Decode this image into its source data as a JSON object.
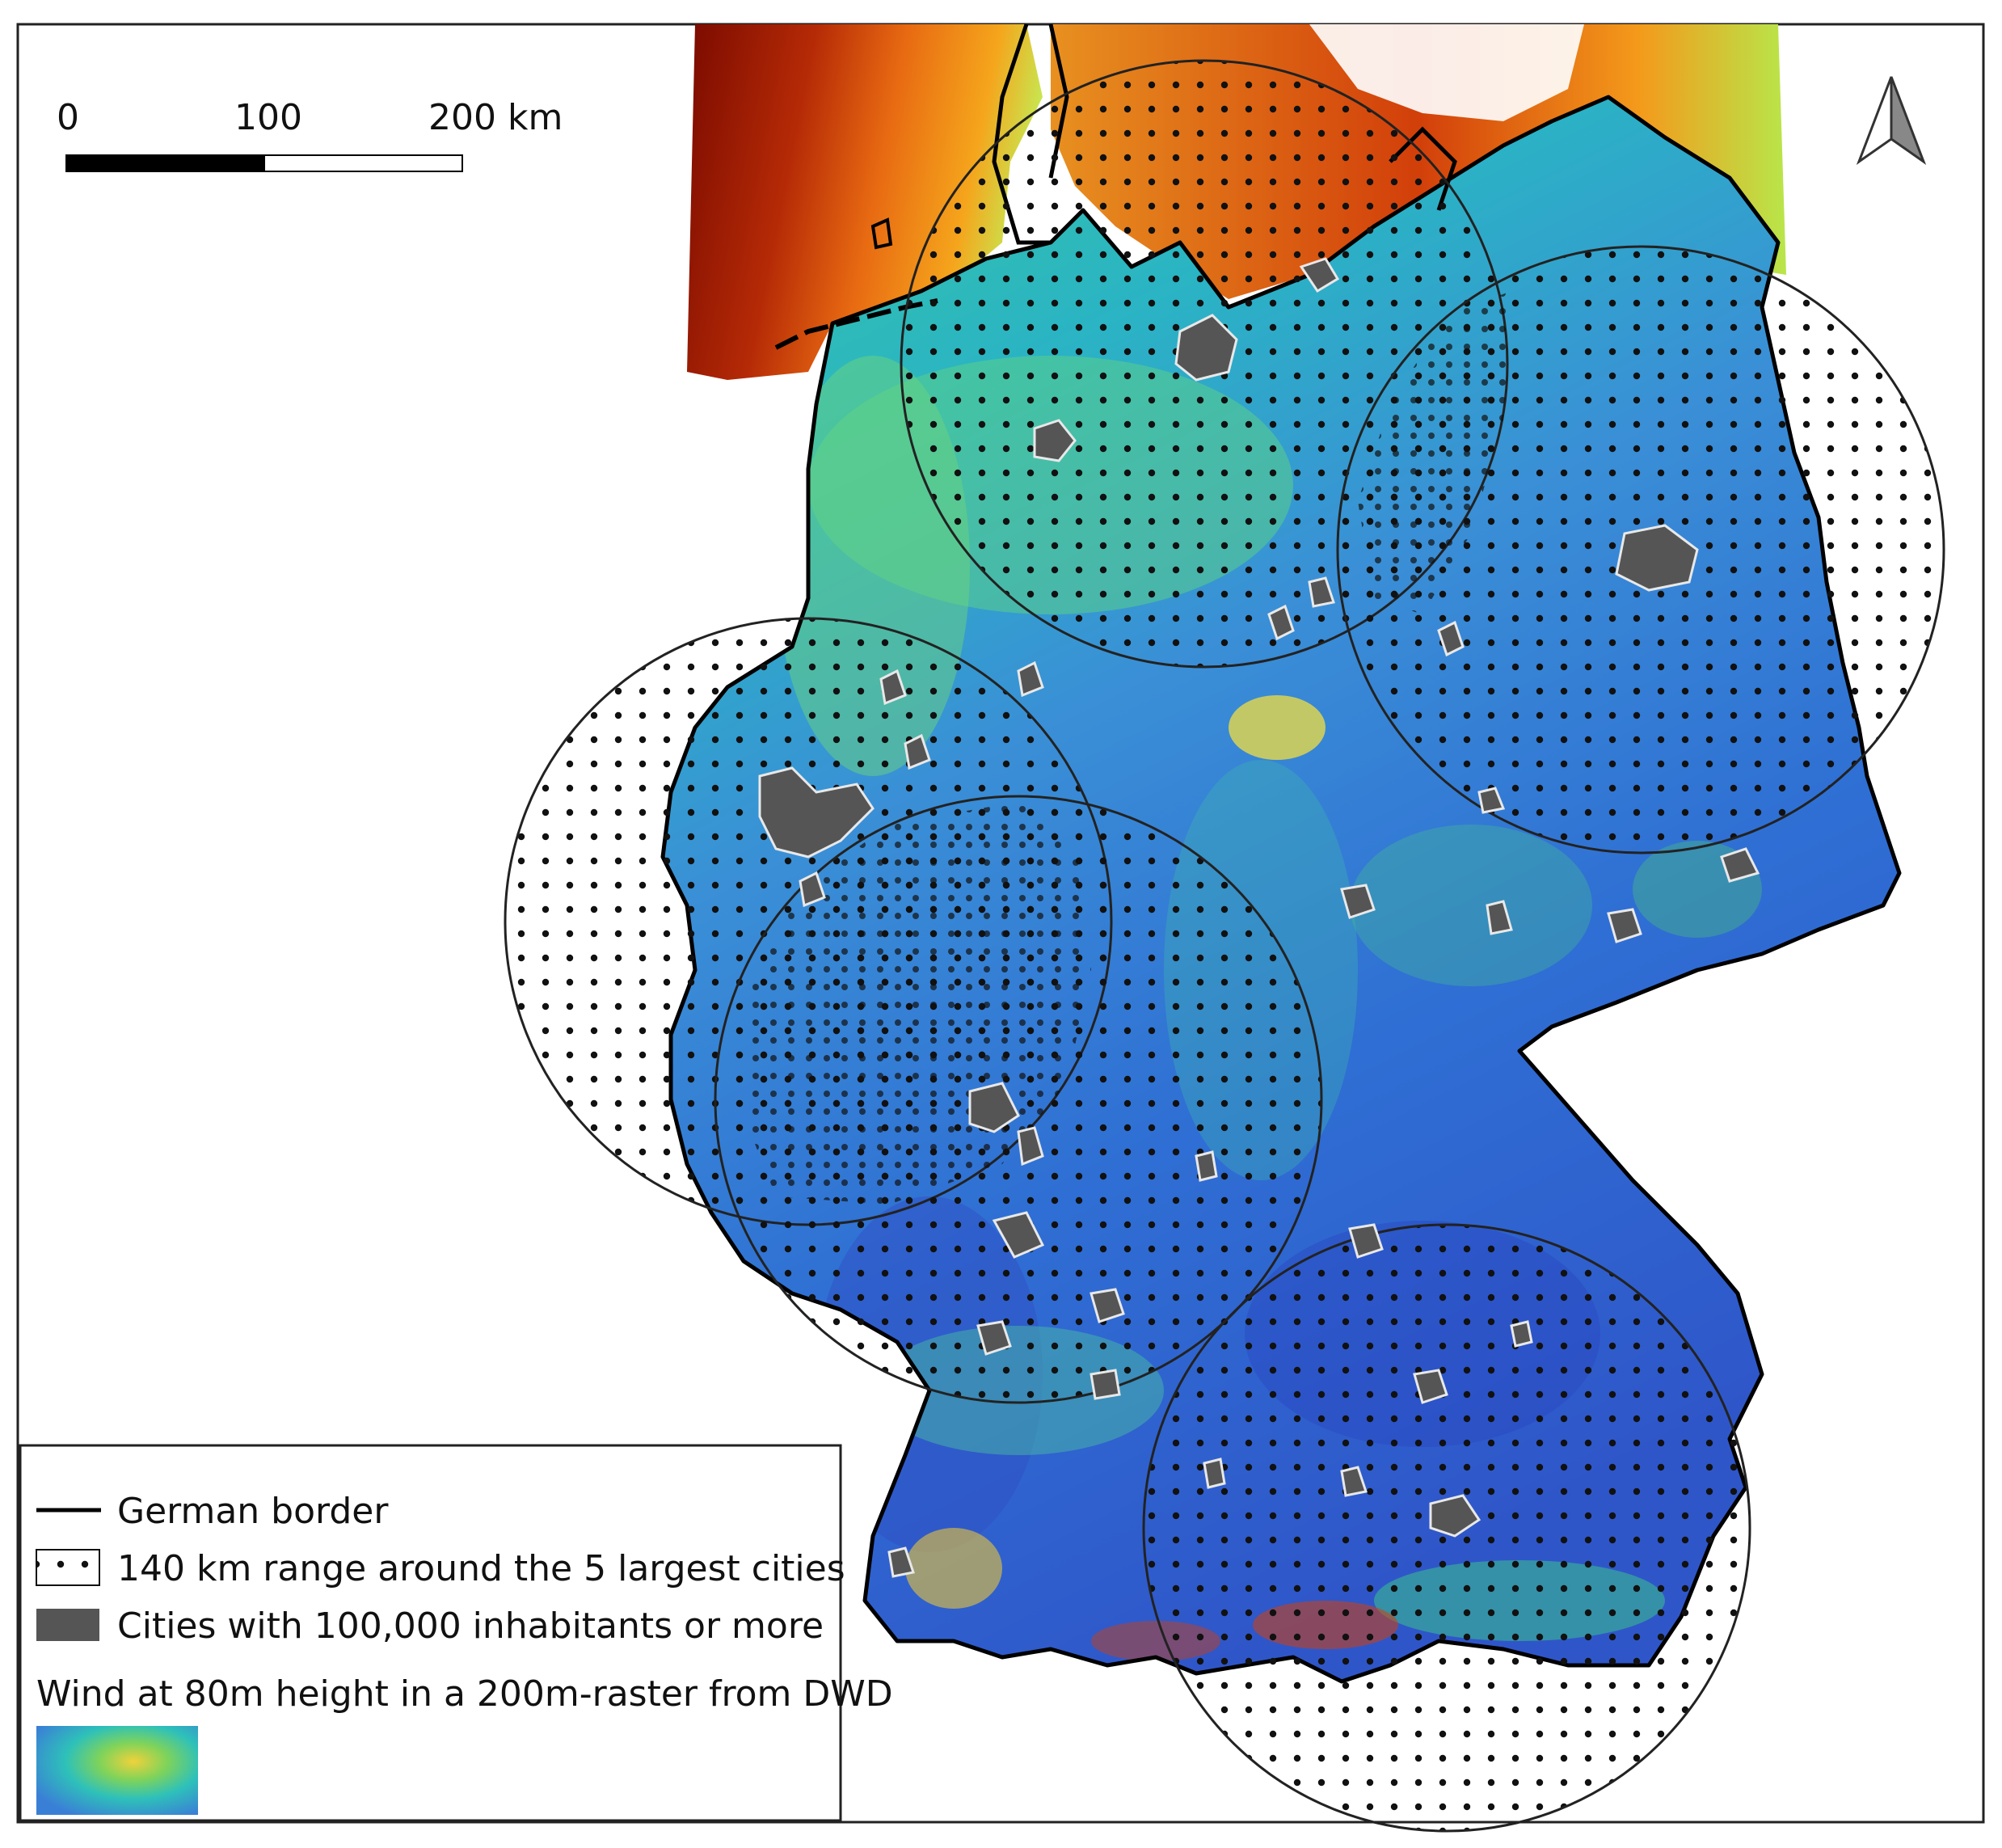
{
  "scalebar": {
    "labels": [
      "0",
      "100",
      "200 km"
    ]
  },
  "north_arrow": {
    "icon": "north-arrow-icon"
  },
  "legend": {
    "items": [
      {
        "label": "German border",
        "symbol": "line"
      },
      {
        "label": "140 km range around the 5 largest cities",
        "symbol": "dot-pattern"
      },
      {
        "label": "Cities with 100,000 inhabitants or more",
        "symbol": "dark-fill"
      },
      {
        "label": "Wind at 80m height in a 200m-raster from DWD",
        "symbol": "raster-swatch"
      }
    ]
  },
  "colors": {
    "frame": "#222222",
    "border_line": "#000000",
    "city_fill": "#555555",
    "city_stroke": "#e8e8e8",
    "raster_low": "#2f56c9",
    "raster_mid": "#2ec1b9",
    "raster_high": "#ffd200",
    "sea_high": "#7a0a00"
  }
}
